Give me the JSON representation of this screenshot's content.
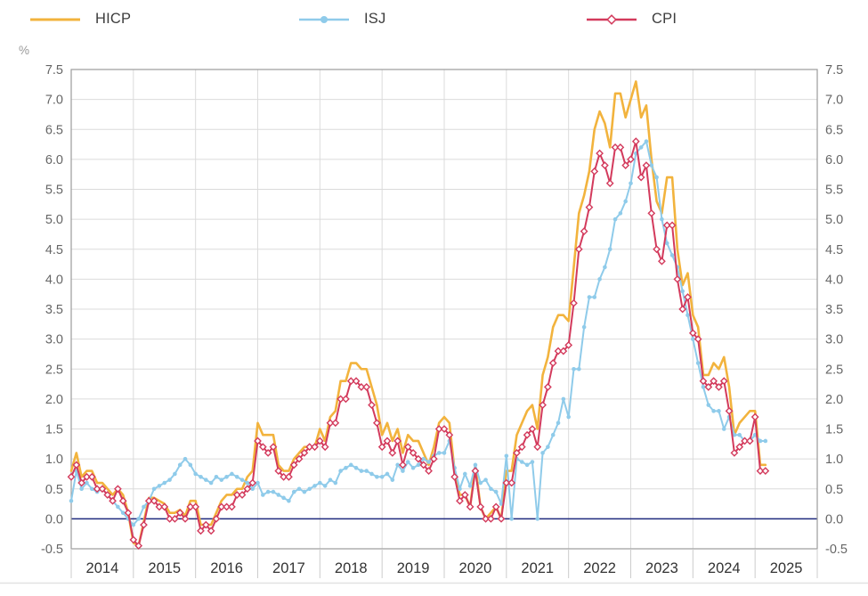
{
  "legend": [
    {
      "label": "HICP",
      "color": "#F2B33D",
      "marker": "none"
    },
    {
      "label": "ISJ",
      "color": "#8FCBEA",
      "marker": "circle"
    },
    {
      "label": "CPI",
      "color": "#D33A5C",
      "marker": "diamond"
    }
  ],
  "axes": {
    "unit_label": "%",
    "y_tick_labels": [
      "7.5",
      "7.0",
      "6.5",
      "6.0",
      "5.5",
      "5.0",
      "4.5",
      "4.0",
      "3.5",
      "3.0",
      "2.5",
      "2.0",
      "1.5",
      "1.0",
      "0.5",
      "0.0",
      "-0.5"
    ],
    "year_labels": [
      "2014",
      "2015",
      "2016",
      "2017",
      "2018",
      "2019",
      "2020",
      "2021",
      "2022",
      "2023",
      "2024",
      "2025"
    ]
  },
  "colors": {
    "hicp": "#F2B33D",
    "isj": "#8FCBEA",
    "cpi": "#D33A5C",
    "zero_line": "#1F2A7E",
    "grid": "#DBDBDB",
    "plot_border": "#9B9B9B",
    "tick_text": "#666666",
    "year_text": "#333333",
    "unit_text": "#9A9A9A",
    "bottom_rule": "#E2E2E2"
  },
  "chart_data": {
    "type": "line",
    "title": "",
    "xlabel": "",
    "ylabel": "%",
    "frequency": "monthly",
    "x_start": "2014-01",
    "x_end": "2025-03",
    "ylim": [
      -0.5,
      7.5
    ],
    "y_step": 0.5,
    "grid": true,
    "legend_position": "top",
    "zero_baseline": true,
    "categories_years": [
      2014,
      2015,
      2016,
      2017,
      2018,
      2019,
      2020,
      2021,
      2022,
      2023,
      2024,
      2025
    ],
    "series": [
      {
        "name": "HICP",
        "color": "#F2B33D",
        "marker": "none",
        "values": [
          0.8,
          1.1,
          0.7,
          0.8,
          0.8,
          0.6,
          0.6,
          0.5,
          0.4,
          0.5,
          0.4,
          0.1,
          -0.4,
          -0.45,
          -0.05,
          0.35,
          0.35,
          0.3,
          0.25,
          0.1,
          0.1,
          0.15,
          0.05,
          0.3,
          0.3,
          -0.1,
          -0.1,
          -0.1,
          0.1,
          0.3,
          0.4,
          0.4,
          0.5,
          0.5,
          0.7,
          0.8,
          1.6,
          1.4,
          1.4,
          1.4,
          0.9,
          0.8,
          0.8,
          1.0,
          1.1,
          1.2,
          1.2,
          1.2,
          1.5,
          1.3,
          1.7,
          1.8,
          2.3,
          2.3,
          2.6,
          2.6,
          2.5,
          2.5,
          2.2,
          1.9,
          1.4,
          1.6,
          1.3,
          1.5,
          1.1,
          1.4,
          1.3,
          1.3,
          1.1,
          0.9,
          1.2,
          1.6,
          1.7,
          1.6,
          0.8,
          0.4,
          0.4,
          0.2,
          0.9,
          0.2,
          0.0,
          0.1,
          0.2,
          0.0,
          0.8,
          0.8,
          1.4,
          1.6,
          1.8,
          1.9,
          1.5,
          2.4,
          2.7,
          3.2,
          3.4,
          3.4,
          3.3,
          4.2,
          5.1,
          5.4,
          5.8,
          6.5,
          6.8,
          6.6,
          6.2,
          7.1,
          7.1,
          6.7,
          7.0,
          7.3,
          6.7,
          6.9,
          6.0,
          5.3,
          5.1,
          5.7,
          5.7,
          4.5,
          3.9,
          4.1,
          3.4,
          3.2,
          2.4,
          2.4,
          2.6,
          2.5,
          2.7,
          2.2,
          1.4,
          1.6,
          1.7,
          1.8,
          1.8,
          0.9,
          0.9
        ]
      },
      {
        "name": "ISJ",
        "color": "#8FCBEA",
        "marker": "circle",
        "values": [
          0.3,
          0.8,
          0.5,
          0.6,
          0.5,
          0.45,
          0.5,
          0.4,
          0.3,
          0.2,
          0.1,
          0.0,
          -0.1,
          0.0,
          0.2,
          0.3,
          0.5,
          0.55,
          0.6,
          0.65,
          0.75,
          0.9,
          1.0,
          0.9,
          0.75,
          0.7,
          0.65,
          0.6,
          0.7,
          0.65,
          0.7,
          0.75,
          0.7,
          0.65,
          0.6,
          0.5,
          0.6,
          0.4,
          0.45,
          0.45,
          0.4,
          0.35,
          0.3,
          0.45,
          0.5,
          0.45,
          0.5,
          0.55,
          0.6,
          0.55,
          0.65,
          0.6,
          0.8,
          0.85,
          0.9,
          0.85,
          0.8,
          0.8,
          0.75,
          0.7,
          0.7,
          0.75,
          0.65,
          0.9,
          0.8,
          0.95,
          0.85,
          0.9,
          1.0,
          0.95,
          1.05,
          1.1,
          1.1,
          1.3,
          0.85,
          0.5,
          0.75,
          0.55,
          0.9,
          0.6,
          0.65,
          0.5,
          0.45,
          0.25,
          1.05,
          0.0,
          1.0,
          0.95,
          0.9,
          0.95,
          0.0,
          1.1,
          1.2,
          1.4,
          1.6,
          2.0,
          1.7,
          2.5,
          2.5,
          3.2,
          3.7,
          3.7,
          4.0,
          4.2,
          4.5,
          5.0,
          5.1,
          5.3,
          5.6,
          6.1,
          6.2,
          6.3,
          5.9,
          5.7,
          5.0,
          4.6,
          4.4,
          4.2,
          3.8,
          3.4,
          3.0,
          2.6,
          2.2,
          1.9,
          1.8,
          1.8,
          1.5,
          1.7,
          1.4,
          1.4,
          1.3,
          1.3,
          1.4,
          1.3,
          1.3
        ]
      },
      {
        "name": "CPI",
        "color": "#D33A5C",
        "marker": "diamond",
        "values": [
          0.7,
          0.9,
          0.6,
          0.7,
          0.7,
          0.5,
          0.5,
          0.4,
          0.3,
          0.5,
          0.3,
          0.1,
          -0.35,
          -0.45,
          -0.1,
          0.3,
          0.3,
          0.2,
          0.2,
          0.0,
          0.0,
          0.1,
          0.0,
          0.2,
          0.2,
          -0.2,
          -0.1,
          -0.2,
          0.0,
          0.2,
          0.2,
          0.2,
          0.4,
          0.4,
          0.5,
          0.6,
          1.3,
          1.2,
          1.1,
          1.2,
          0.8,
          0.7,
          0.7,
          0.9,
          1.0,
          1.1,
          1.2,
          1.2,
          1.3,
          1.2,
          1.6,
          1.6,
          2.0,
          2.0,
          2.3,
          2.3,
          2.2,
          2.2,
          1.9,
          1.6,
          1.2,
          1.3,
          1.1,
          1.3,
          0.9,
          1.2,
          1.1,
          1.0,
          0.9,
          0.8,
          1.0,
          1.5,
          1.5,
          1.4,
          0.7,
          0.3,
          0.4,
          0.2,
          0.8,
          0.2,
          0.0,
          0.0,
          0.2,
          0.0,
          0.6,
          0.6,
          1.1,
          1.2,
          1.4,
          1.5,
          1.2,
          1.9,
          2.2,
          2.6,
          2.8,
          2.8,
          2.9,
          3.6,
          4.5,
          4.8,
          5.2,
          5.8,
          6.1,
          5.9,
          5.6,
          6.2,
          6.2,
          5.9,
          6.0,
          6.3,
          5.7,
          5.9,
          5.1,
          4.5,
          4.3,
          4.9,
          4.9,
          4.0,
          3.5,
          3.7,
          3.1,
          3.0,
          2.3,
          2.2,
          2.3,
          2.2,
          2.3,
          1.8,
          1.1,
          1.2,
          1.3,
          1.3,
          1.7,
          0.8,
          0.8
        ]
      }
    ]
  }
}
